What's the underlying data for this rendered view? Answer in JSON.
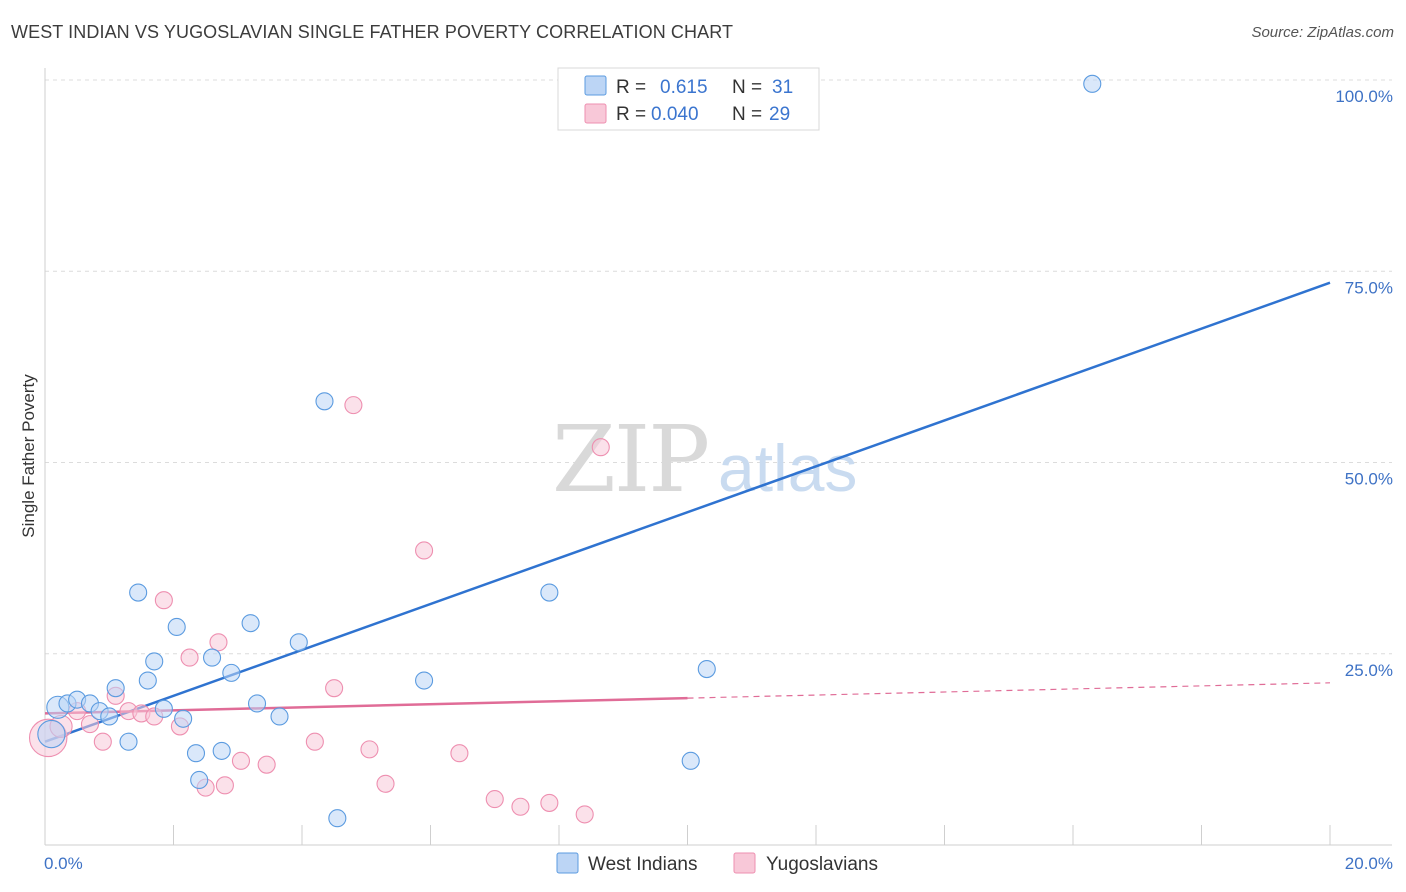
{
  "header": {
    "title": "WEST INDIAN VS YUGOSLAVIAN SINGLE FATHER POVERTY CORRELATION CHART",
    "source": "Source: ZipAtlas.com"
  },
  "watermark": {
    "zip": "ZIP",
    "atlas": "atlas"
  },
  "colors": {
    "blue": "#5b9be0",
    "blue_fill": "#bcd5f5",
    "blue_line": "#2f73d0",
    "pink": "#ee8fb0",
    "pink_fill": "#f8c8d8",
    "pink_line": "#e06c97",
    "tick_text": "#3e72c5"
  },
  "legend": {
    "rows": [
      {
        "r_label": "R =",
        "r_value": "0.615",
        "n_label": "N =",
        "n_value": "31"
      },
      {
        "r_label": "R =",
        "r_value": "0.040",
        "n_label": "N =",
        "n_value": "29"
      }
    ]
  },
  "bottom_legend": {
    "items": [
      "West Indians",
      "Yugoslavians"
    ]
  },
  "chart_data": {
    "type": "scatter",
    "title": "WEST INDIAN VS YUGOSLAVIAN SINGLE FATHER POVERTY CORRELATION CHART",
    "xlabel": "",
    "ylabel": "Single Father Poverty",
    "xlim": [
      0,
      20
    ],
    "ylim": [
      0,
      100
    ],
    "x_tick_labels": [
      "0.0%",
      "20.0%"
    ],
    "y_tick_labels": [
      "100.0%",
      "75.0%",
      "50.0%",
      "25.0%"
    ],
    "y_ticks": [
      100,
      75,
      50,
      25
    ],
    "grid": true,
    "series": [
      {
        "name": "West Indians",
        "r": 0.615,
        "n": 31,
        "points": [
          {
            "x": 0.1,
            "y": 14.5,
            "s": 1.6
          },
          {
            "x": 0.2,
            "y": 18.0,
            "s": 1.3
          },
          {
            "x": 0.35,
            "y": 18.5,
            "s": 1.0
          },
          {
            "x": 0.5,
            "y": 19.0,
            "s": 1.0
          },
          {
            "x": 0.7,
            "y": 18.5,
            "s": 1.0
          },
          {
            "x": 0.85,
            "y": 17.5,
            "s": 1.0
          },
          {
            "x": 1.0,
            "y": 16.8,
            "s": 1.0
          },
          {
            "x": 1.1,
            "y": 20.5,
            "s": 1.0
          },
          {
            "x": 1.3,
            "y": 13.5,
            "s": 1.0
          },
          {
            "x": 1.45,
            "y": 33.0,
            "s": 1.0
          },
          {
            "x": 1.6,
            "y": 21.5,
            "s": 1.0
          },
          {
            "x": 1.7,
            "y": 24.0,
            "s": 1.0
          },
          {
            "x": 1.85,
            "y": 17.8,
            "s": 1.0
          },
          {
            "x": 2.05,
            "y": 28.5,
            "s": 1.0
          },
          {
            "x": 2.15,
            "y": 16.5,
            "s": 1.0
          },
          {
            "x": 2.35,
            "y": 12.0,
            "s": 1.0
          },
          {
            "x": 2.4,
            "y": 8.5,
            "s": 1.0
          },
          {
            "x": 2.6,
            "y": 24.5,
            "s": 1.0
          },
          {
            "x": 2.75,
            "y": 12.3,
            "s": 1.0
          },
          {
            "x": 2.9,
            "y": 22.5,
            "s": 1.0
          },
          {
            "x": 3.2,
            "y": 29.0,
            "s": 1.0
          },
          {
            "x": 3.3,
            "y": 18.5,
            "s": 1.0
          },
          {
            "x": 3.65,
            "y": 16.8,
            "s": 1.0
          },
          {
            "x": 3.95,
            "y": 26.5,
            "s": 1.0
          },
          {
            "x": 4.35,
            "y": 58.0,
            "s": 1.0
          },
          {
            "x": 4.55,
            "y": 3.5,
            "s": 1.0
          },
          {
            "x": 5.9,
            "y": 21.5,
            "s": 1.0
          },
          {
            "x": 7.85,
            "y": 33.0,
            "s": 1.0
          },
          {
            "x": 10.05,
            "y": 11.0,
            "s": 1.0
          },
          {
            "x": 10.3,
            "y": 23.0,
            "s": 1.0
          },
          {
            "x": 16.3,
            "y": 99.5,
            "s": 1.0
          }
        ],
        "trend": {
          "x0": 0,
          "y0": 13.5,
          "x1": 20,
          "y1": 73.5
        }
      },
      {
        "name": "Yugoslavians",
        "r": 0.04,
        "n": 29,
        "points": [
          {
            "x": 0.05,
            "y": 14.0,
            "s": 2.2
          },
          {
            "x": 0.25,
            "y": 15.5,
            "s": 1.3
          },
          {
            "x": 0.5,
            "y": 17.5,
            "s": 1.0
          },
          {
            "x": 0.7,
            "y": 15.8,
            "s": 1.0
          },
          {
            "x": 0.9,
            "y": 13.5,
            "s": 1.0
          },
          {
            "x": 1.1,
            "y": 19.5,
            "s": 1.0
          },
          {
            "x": 1.3,
            "y": 17.5,
            "s": 1.0
          },
          {
            "x": 1.5,
            "y": 17.2,
            "s": 1.0
          },
          {
            "x": 1.7,
            "y": 16.8,
            "s": 1.0
          },
          {
            "x": 1.85,
            "y": 32.0,
            "s": 1.0
          },
          {
            "x": 2.1,
            "y": 15.5,
            "s": 1.0
          },
          {
            "x": 2.25,
            "y": 24.5,
            "s": 1.0
          },
          {
            "x": 2.5,
            "y": 7.5,
            "s": 1.0
          },
          {
            "x": 2.7,
            "y": 26.5,
            "s": 1.0
          },
          {
            "x": 2.8,
            "y": 7.8,
            "s": 1.0
          },
          {
            "x": 3.05,
            "y": 11.0,
            "s": 1.0
          },
          {
            "x": 3.45,
            "y": 10.5,
            "s": 1.0
          },
          {
            "x": 4.2,
            "y": 13.5,
            "s": 1.0
          },
          {
            "x": 4.5,
            "y": 20.5,
            "s": 1.0
          },
          {
            "x": 4.8,
            "y": 57.5,
            "s": 1.0
          },
          {
            "x": 5.05,
            "y": 12.5,
            "s": 1.0
          },
          {
            "x": 5.3,
            "y": 8.0,
            "s": 1.0
          },
          {
            "x": 5.9,
            "y": 38.5,
            "s": 1.0
          },
          {
            "x": 6.45,
            "y": 12.0,
            "s": 1.0
          },
          {
            "x": 7.0,
            "y": 6.0,
            "s": 1.0
          },
          {
            "x": 7.4,
            "y": 5.0,
            "s": 1.0
          },
          {
            "x": 7.85,
            "y": 5.5,
            "s": 1.0
          },
          {
            "x": 8.4,
            "y": 4.0,
            "s": 1.0
          },
          {
            "x": 8.65,
            "y": 52.0,
            "s": 1.0
          }
        ],
        "trend": {
          "x0": 0,
          "y0": 17.2,
          "x1": 10.0,
          "y1": 19.2,
          "x_dash_end": 20,
          "y_dash_end": 21.2
        }
      }
    ]
  }
}
